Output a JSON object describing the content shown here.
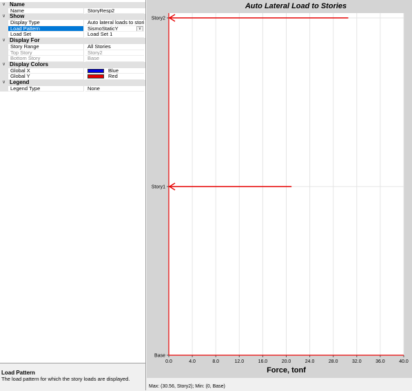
{
  "property_grid": {
    "categories": [
      {
        "label": "Name",
        "rows": [
          {
            "name": "Name",
            "value": "StoryResp2"
          }
        ]
      },
      {
        "label": "Show",
        "rows": [
          {
            "name": "Display Type",
            "value": "Auto lateral loads to stories"
          },
          {
            "name": "Load Pattern",
            "value": "SismoStaticY",
            "selected": true,
            "dropdown": true
          },
          {
            "name": "Load Set",
            "value": "Load Set 1"
          }
        ]
      },
      {
        "label": "Display For",
        "rows": [
          {
            "name": "Story Range",
            "value": "All Stories"
          },
          {
            "name": "Top Story",
            "value": "Story2",
            "disabled": true
          },
          {
            "name": "Bottom Story",
            "value": "Base",
            "disabled": true
          }
        ]
      },
      {
        "label": "Display Colors",
        "rows": [
          {
            "name": "Global X",
            "value": "Blue",
            "swatch": "#0000e6"
          },
          {
            "name": "Global Y",
            "value": "Red",
            "swatch": "#e60000"
          }
        ]
      },
      {
        "label": "Legend",
        "rows": [
          {
            "name": "Legend Type",
            "value": "None"
          }
        ]
      }
    ]
  },
  "description": {
    "title": "Load Pattern",
    "text": "The load pattern for which the story loads are displayed."
  },
  "status": {
    "text": "Max: (30.56, Story2);  Min: (0, Base)"
  },
  "chart_data": {
    "type": "bar",
    "orientation": "horizontal",
    "title": "Auto Lateral Load to Stories",
    "xlabel": "Force, tonf",
    "ylabel": "",
    "categories": [
      "Base",
      "Story1",
      "Story2"
    ],
    "series": [
      {
        "name": "Global Y",
        "color": "#e60000",
        "values": [
          0,
          20.9,
          30.56
        ]
      }
    ],
    "xlim": [
      0,
      40
    ],
    "xticks": [
      "0.0",
      "4.0",
      "8.0",
      "12.0",
      "16.0",
      "20.0",
      "24.0",
      "28.0",
      "32.0",
      "36.0",
      "40.0"
    ],
    "xtick_values": [
      0,
      4,
      8,
      12,
      16,
      20,
      24,
      28,
      32,
      36,
      40
    ],
    "grid": true,
    "arrows": "pointing toward axis"
  }
}
